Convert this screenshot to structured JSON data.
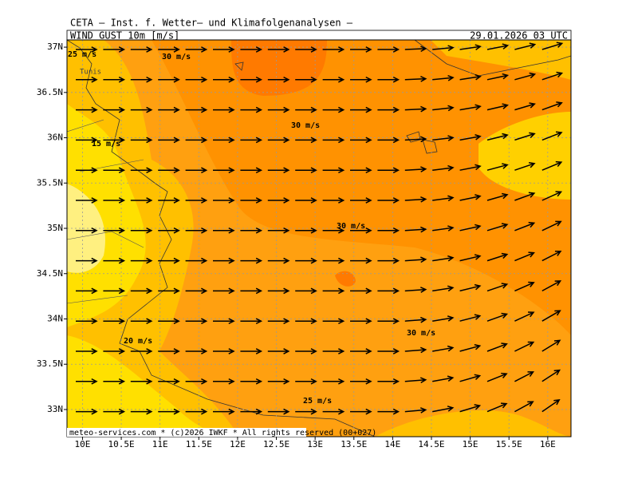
{
  "header": {
    "title": "CETA – Inst. f. Wetter– und Klimafolgenanalysen –",
    "variable": "WIND_GUST_10m [m/s]",
    "valid": "29.01.2026 03 UTC"
  },
  "map": {
    "xlim": [
      9.8,
      16.3
    ],
    "ylim": [
      32.7,
      37.08
    ],
    "xticks": [
      {
        "value": 10,
        "label": "10E"
      },
      {
        "value": 10.5,
        "label": "10.5E"
      },
      {
        "value": 11,
        "label": "11E"
      },
      {
        "value": 11.5,
        "label": "11.5E"
      },
      {
        "value": 12,
        "label": "12E"
      },
      {
        "value": 12.5,
        "label": "12.5E"
      },
      {
        "value": 13,
        "label": "13E"
      },
      {
        "value": 13.5,
        "label": "13.5E"
      },
      {
        "value": 14,
        "label": "14E"
      },
      {
        "value": 14.5,
        "label": "14.5E"
      },
      {
        "value": 15,
        "label": "15E"
      },
      {
        "value": 15.5,
        "label": "15.5E"
      },
      {
        "value": 16,
        "label": "16E"
      }
    ],
    "yticks": [
      {
        "value": 33,
        "label": "33N"
      },
      {
        "value": 33.5,
        "label": "33.5N"
      },
      {
        "value": 34,
        "label": "34N"
      },
      {
        "value": 34.5,
        "label": "34.5N"
      },
      {
        "value": 35,
        "label": "35N"
      },
      {
        "value": 35.5,
        "label": "35.5N"
      },
      {
        "value": 36,
        "label": "36N"
      },
      {
        "value": 36.5,
        "label": "36.5N"
      },
      {
        "value": 37,
        "label": "37N"
      }
    ],
    "contour_labels": [
      "25 m/s",
      "30 m/s",
      "30 m/s",
      "15 m/s",
      "30 m/s",
      "30 m/s",
      "20 m/s",
      "25 m/s"
    ],
    "place_labels": [
      "Tunis"
    ]
  },
  "footer": "meteo-services.com * (c)2026 IWKF * All rights reserved (00+027)"
}
